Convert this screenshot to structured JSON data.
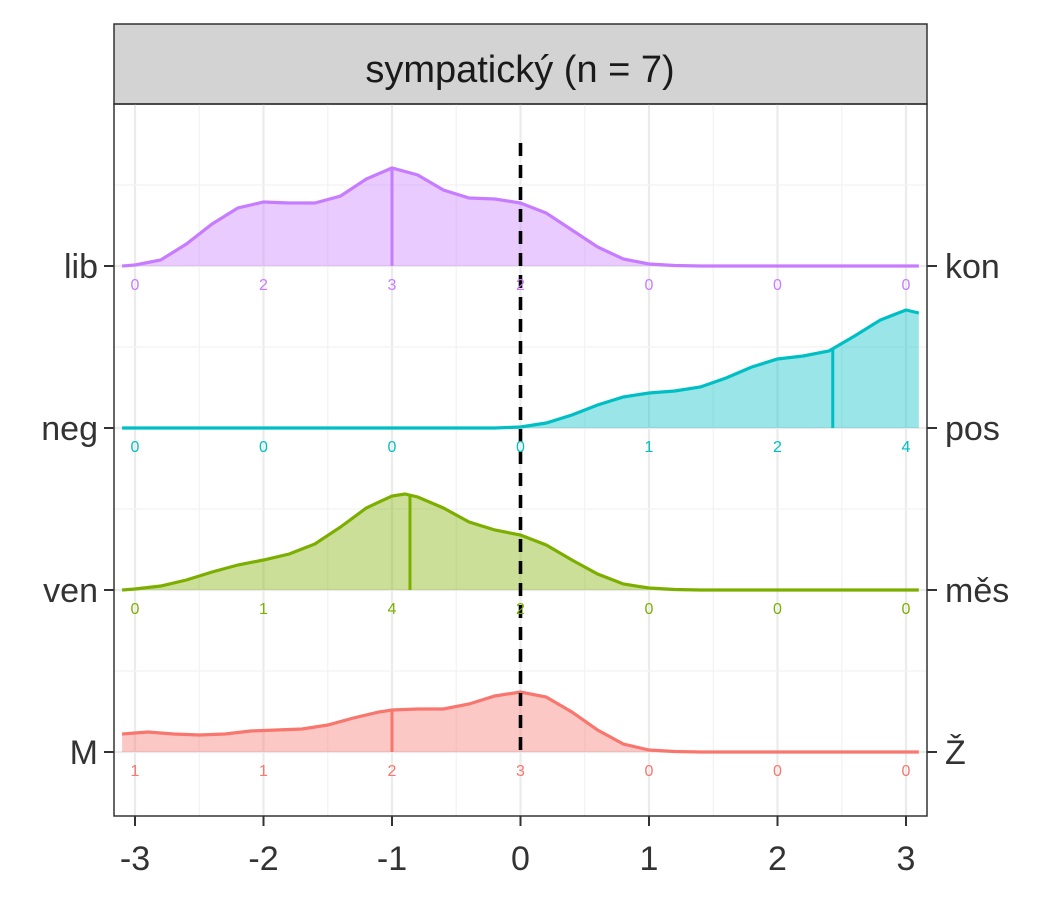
{
  "chart_data": {
    "type": "ridgeline",
    "title": "sympatický (n = 7)",
    "xlabel": "",
    "ylabel": "",
    "xlim": [
      -3.1,
      3.1
    ],
    "x_ticks": [
      -3,
      -2,
      -1,
      0,
      1,
      2,
      3
    ],
    "x_tick_labels": [
      "-3",
      "-2",
      "-1",
      "0",
      "1",
      "2",
      "3"
    ],
    "reference_line_x": 0,
    "grid": true,
    "count_positions": [
      -3,
      -2,
      -1,
      0,
      1,
      2,
      3
    ],
    "series": [
      {
        "left_label": "lib",
        "right_label": "kon",
        "color": "#C77CFF",
        "counts": [
          "0",
          "2",
          "3",
          "2",
          "0",
          "0",
          "0"
        ],
        "mean": -1.0,
        "density": [
          [
            -3.1,
            0
          ],
          [
            -3.0,
            0.01
          ],
          [
            -2.8,
            0.06
          ],
          [
            -2.6,
            0.22
          ],
          [
            -2.4,
            0.42
          ],
          [
            -2.2,
            0.58
          ],
          [
            -2.0,
            0.64
          ],
          [
            -1.8,
            0.63
          ],
          [
            -1.6,
            0.63
          ],
          [
            -1.4,
            0.7
          ],
          [
            -1.2,
            0.87
          ],
          [
            -1.0,
            0.98
          ],
          [
            -0.8,
            0.91
          ],
          [
            -0.6,
            0.76
          ],
          [
            -0.4,
            0.68
          ],
          [
            -0.2,
            0.67
          ],
          [
            0.0,
            0.63
          ],
          [
            0.2,
            0.53
          ],
          [
            0.4,
            0.36
          ],
          [
            0.6,
            0.19
          ],
          [
            0.8,
            0.07
          ],
          [
            1.0,
            0.02
          ],
          [
            1.2,
            0.005
          ],
          [
            1.4,
            0
          ],
          [
            3.1,
            0
          ]
        ]
      },
      {
        "left_label": "neg",
        "right_label": "pos",
        "color": "#00BFC4",
        "counts": [
          "0",
          "0",
          "0",
          "0",
          "1",
          "2",
          "4"
        ],
        "mean": 2.43,
        "density": [
          [
            -3.1,
            0
          ],
          [
            -0.2,
            0
          ],
          [
            0.0,
            0.01
          ],
          [
            0.2,
            0.05
          ],
          [
            0.4,
            0.13
          ],
          [
            0.6,
            0.23
          ],
          [
            0.8,
            0.31
          ],
          [
            1.0,
            0.35
          ],
          [
            1.2,
            0.37
          ],
          [
            1.4,
            0.41
          ],
          [
            1.6,
            0.5
          ],
          [
            1.8,
            0.61
          ],
          [
            2.0,
            0.69
          ],
          [
            2.2,
            0.72
          ],
          [
            2.4,
            0.77
          ],
          [
            2.6,
            0.92
          ],
          [
            2.8,
            1.08
          ],
          [
            3.0,
            1.18
          ],
          [
            3.1,
            1.15
          ]
        ]
      },
      {
        "left_label": "ven",
        "right_label": "měs",
        "color": "#7CAE00",
        "counts": [
          "0",
          "1",
          "4",
          "2",
          "0",
          "0",
          "0"
        ],
        "mean": -0.86,
        "density": [
          [
            -3.1,
            0
          ],
          [
            -3.0,
            0.01
          ],
          [
            -2.8,
            0.04
          ],
          [
            -2.6,
            0.1
          ],
          [
            -2.4,
            0.18
          ],
          [
            -2.2,
            0.25
          ],
          [
            -2.0,
            0.3
          ],
          [
            -1.8,
            0.36
          ],
          [
            -1.6,
            0.46
          ],
          [
            -1.4,
            0.63
          ],
          [
            -1.2,
            0.82
          ],
          [
            -1.0,
            0.94
          ],
          [
            -0.9,
            0.96
          ],
          [
            -0.8,
            0.93
          ],
          [
            -0.6,
            0.82
          ],
          [
            -0.4,
            0.68
          ],
          [
            -0.2,
            0.6
          ],
          [
            0.0,
            0.55
          ],
          [
            0.2,
            0.45
          ],
          [
            0.4,
            0.3
          ],
          [
            0.6,
            0.16
          ],
          [
            0.8,
            0.06
          ],
          [
            1.0,
            0.02
          ],
          [
            1.2,
            0.005
          ],
          [
            1.4,
            0
          ],
          [
            3.1,
            0
          ]
        ]
      },
      {
        "left_label": "M",
        "right_label": "Ž",
        "color": "#F8766D",
        "counts": [
          "1",
          "1",
          "2",
          "3",
          "0",
          "0",
          "0"
        ],
        "mean": -1.0,
        "density": [
          [
            -3.1,
            0.18
          ],
          [
            -2.9,
            0.2
          ],
          [
            -2.7,
            0.18
          ],
          [
            -2.5,
            0.17
          ],
          [
            -2.3,
            0.18
          ],
          [
            -2.1,
            0.21
          ],
          [
            -1.9,
            0.22
          ],
          [
            -1.7,
            0.23
          ],
          [
            -1.5,
            0.27
          ],
          [
            -1.3,
            0.34
          ],
          [
            -1.1,
            0.4
          ],
          [
            -1.0,
            0.42
          ],
          [
            -0.8,
            0.43
          ],
          [
            -0.6,
            0.43
          ],
          [
            -0.4,
            0.48
          ],
          [
            -0.2,
            0.56
          ],
          [
            0.0,
            0.6
          ],
          [
            0.2,
            0.55
          ],
          [
            0.4,
            0.4
          ],
          [
            0.6,
            0.22
          ],
          [
            0.8,
            0.08
          ],
          [
            1.0,
            0.02
          ],
          [
            1.2,
            0.005
          ],
          [
            1.4,
            0
          ],
          [
            3.1,
            0
          ]
        ]
      }
    ]
  }
}
